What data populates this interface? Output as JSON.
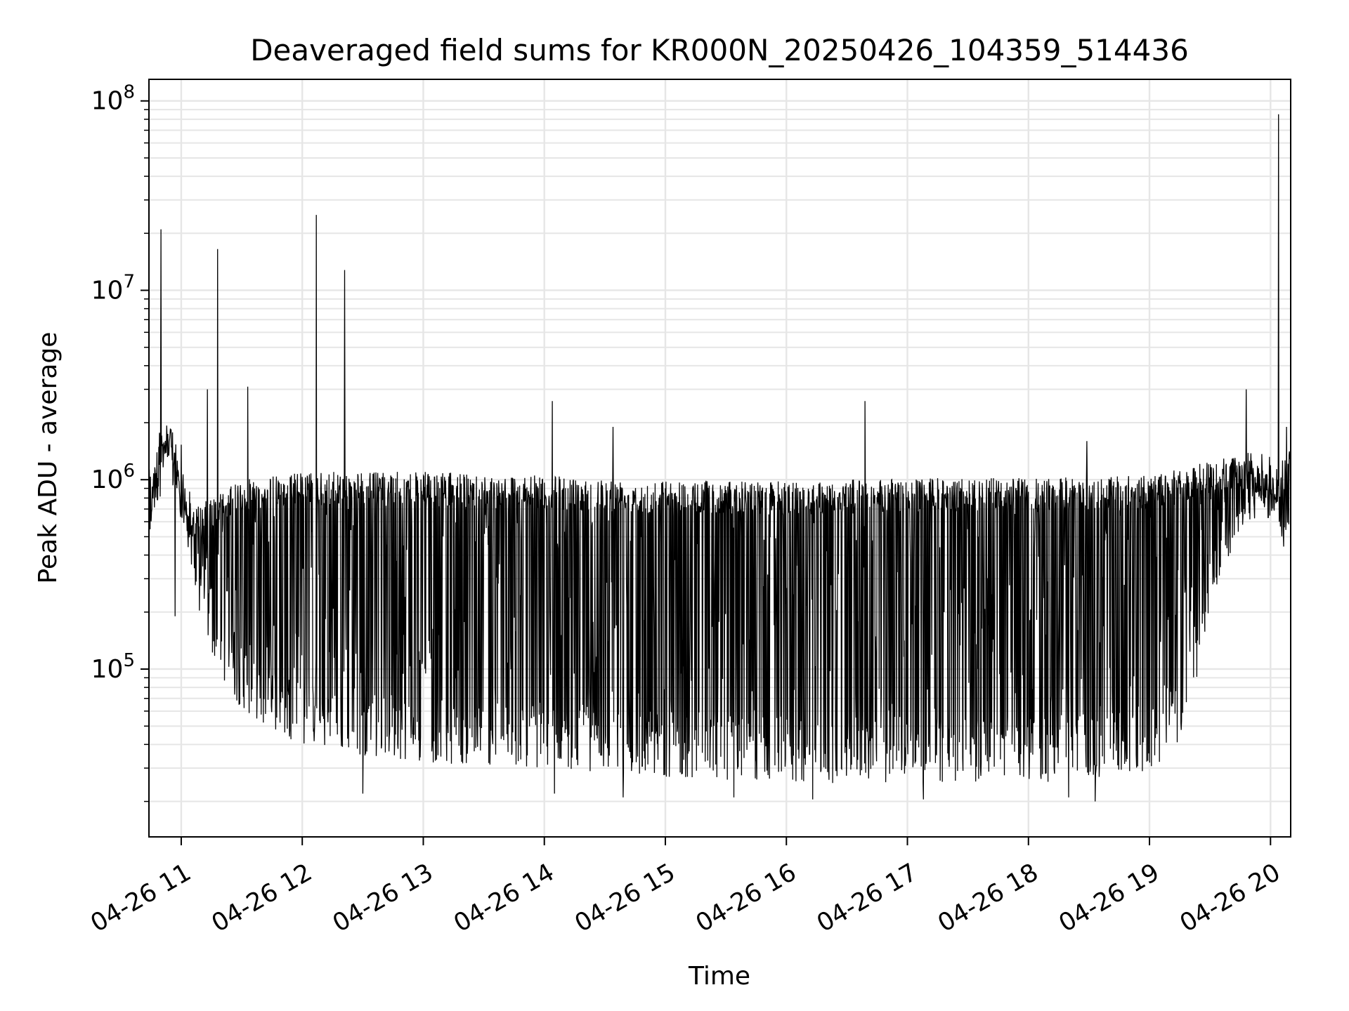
{
  "chart_data": {
    "type": "line",
    "title": "Deaveraged field sums for KR000N_20250426_104359_514436",
    "xlabel": "Time",
    "ylabel": "Peak ADU - average",
    "y_scale": "log",
    "grid": true,
    "legend": "none",
    "series_color": "#000000",
    "grid_color": "#e6e6e6",
    "xlim": [
      "2025-04-26 10:44",
      "2025-04-26 20:10"
    ],
    "ylim": [
      13000,
      130000000
    ],
    "x_ticks": [
      {
        "value": "2025-04-26 11:00",
        "label": "04-26 11"
      },
      {
        "value": "2025-04-26 12:00",
        "label": "04-26 12"
      },
      {
        "value": "2025-04-26 13:00",
        "label": "04-26 13"
      },
      {
        "value": "2025-04-26 14:00",
        "label": "04-26 14"
      },
      {
        "value": "2025-04-26 15:00",
        "label": "04-26 15"
      },
      {
        "value": "2025-04-26 16:00",
        "label": "04-26 16"
      },
      {
        "value": "2025-04-26 17:00",
        "label": "04-26 17"
      },
      {
        "value": "2025-04-26 18:00",
        "label": "04-26 18"
      },
      {
        "value": "2025-04-26 19:00",
        "label": "04-26 19"
      },
      {
        "value": "2025-04-26 20:00",
        "label": "04-26 20"
      }
    ],
    "y_ticks": [
      {
        "value": 100000,
        "base": "10",
        "exp": "5"
      },
      {
        "value": 1000000,
        "base": "10",
        "exp": "6"
      },
      {
        "value": 10000000,
        "base": "10",
        "exp": "7"
      },
      {
        "value": 100000000,
        "base": "10",
        "exp": "8"
      }
    ],
    "series": [
      {
        "envelope": {
          "upper": [
            [
              "2025-04-26 10:44",
              700000
            ],
            [
              "2025-04-26 10:48",
              1700000
            ],
            [
              "2025-04-26 10:52",
              2000000
            ],
            [
              "2025-04-26 10:56",
              1800000
            ],
            [
              "2025-04-26 11:00",
              900000
            ],
            [
              "2025-04-26 11:05",
              700000
            ],
            [
              "2025-04-26 11:15",
              800000
            ],
            [
              "2025-04-26 11:30",
              1000000
            ],
            [
              "2025-04-26 12:00",
              1100000
            ],
            [
              "2025-04-26 13:00",
              1100000
            ],
            [
              "2025-04-26 14:00",
              1050000
            ],
            [
              "2025-04-26 15:00",
              1000000
            ],
            [
              "2025-04-26 16:00",
              980000
            ],
            [
              "2025-04-26 17:00",
              1020000
            ],
            [
              "2025-04-26 18:00",
              1020000
            ],
            [
              "2025-04-26 19:00",
              1050000
            ],
            [
              "2025-04-26 19:30",
              1250000
            ],
            [
              "2025-04-26 19:50",
              1400000
            ],
            [
              "2025-04-26 20:00",
              1000000
            ],
            [
              "2025-04-26 20:10",
              1500000
            ]
          ],
          "lower": [
            [
              "2025-04-26 10:44",
              500000
            ],
            [
              "2025-04-26 10:52",
              1000000
            ],
            [
              "2025-04-26 11:00",
              700000
            ],
            [
              "2025-04-26 11:04",
              400000
            ],
            [
              "2025-04-26 11:08",
              200000
            ],
            [
              "2025-04-26 11:15",
              120000
            ],
            [
              "2025-04-26 11:25",
              70000
            ],
            [
              "2025-04-26 11:40",
              50000
            ],
            [
              "2025-04-26 12:00",
              40000
            ],
            [
              "2025-04-26 12:30",
              35000
            ],
            [
              "2025-04-26 13:00",
              32000
            ],
            [
              "2025-04-26 14:00",
              30000
            ],
            [
              "2025-04-26 15:00",
              27000
            ],
            [
              "2025-04-26 16:00",
              25000
            ],
            [
              "2025-04-26 17:00",
              25000
            ],
            [
              "2025-04-26 18:00",
              25000
            ],
            [
              "2025-04-26 19:00",
              27000
            ],
            [
              "2025-04-26 19:15",
              40000
            ],
            [
              "2025-04-26 19:25",
              100000
            ],
            [
              "2025-04-26 19:35",
              300000
            ],
            [
              "2025-04-26 19:45",
              550000
            ],
            [
              "2025-04-26 19:55",
              650000
            ],
            [
              "2025-04-26 20:02",
              600000
            ],
            [
              "2025-04-26 20:06",
              400000
            ],
            [
              "2025-04-26 20:10",
              600000
            ]
          ]
        },
        "spikes": [
          [
            "2025-04-26 10:50",
            21000000
          ],
          [
            "2025-04-26 11:13",
            3000000
          ],
          [
            "2025-04-26 11:18",
            16500000
          ],
          [
            "2025-04-26 11:33",
            3100000
          ],
          [
            "2025-04-26 12:07",
            25000000
          ],
          [
            "2025-04-26 12:21",
            12800000
          ],
          [
            "2025-04-26 14:04",
            2600000
          ],
          [
            "2025-04-26 14:34",
            1900000
          ],
          [
            "2025-04-26 16:39",
            2600000
          ],
          [
            "2025-04-26 18:29",
            1600000
          ],
          [
            "2025-04-26 19:48",
            3000000
          ],
          [
            "2025-04-26 20:04",
            85000000
          ],
          [
            "2025-04-26 20:08",
            1900000
          ]
        ],
        "dips": [
          [
            "2025-04-26 10:57",
            190000
          ],
          [
            "2025-04-26 12:30",
            22000
          ],
          [
            "2025-04-26 14:05",
            22000
          ],
          [
            "2025-04-26 14:39",
            21000
          ],
          [
            "2025-04-26 15:34",
            21000
          ],
          [
            "2025-04-26 16:13",
            20500
          ],
          [
            "2025-04-26 17:08",
            20500
          ],
          [
            "2025-04-26 18:20",
            21000
          ],
          [
            "2025-04-26 18:33",
            20000
          ]
        ]
      }
    ]
  }
}
